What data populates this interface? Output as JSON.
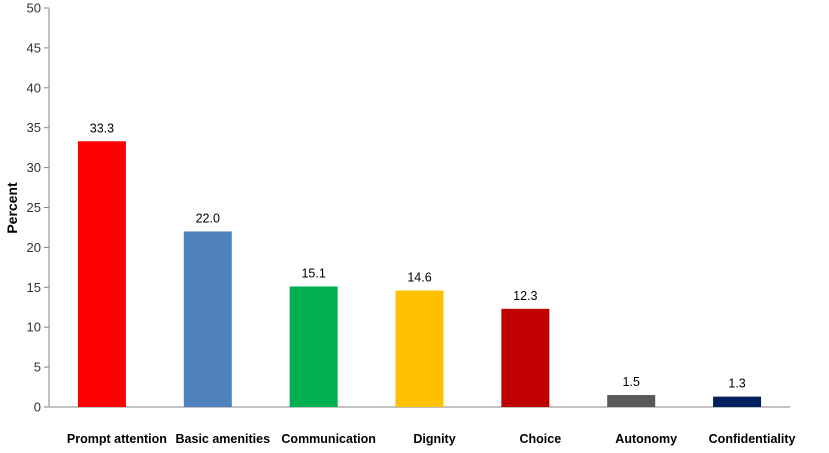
{
  "chart_data": {
    "type": "bar",
    "ylabel": "Percent",
    "ylim": [
      0,
      50
    ],
    "yticks": [
      0,
      5,
      10,
      15,
      20,
      25,
      30,
      35,
      40,
      45,
      50
    ],
    "grid": false,
    "categories": [
      "Prompt attention",
      "Basic amenities",
      "Communication",
      "Dignity",
      "Choice",
      "Autonomy",
      "Confidentiality"
    ],
    "values": [
      33.3,
      22.0,
      15.1,
      14.6,
      12.3,
      1.5,
      1.3
    ],
    "value_labels": [
      "33.3",
      "22.0",
      "15.1",
      "14.6",
      "12.3",
      "1.5",
      "1.3"
    ],
    "colors": [
      "#ff0000",
      "#4f81bd",
      "#00b050",
      "#ffc000",
      "#c00000",
      "#595959",
      "#002060"
    ]
  }
}
